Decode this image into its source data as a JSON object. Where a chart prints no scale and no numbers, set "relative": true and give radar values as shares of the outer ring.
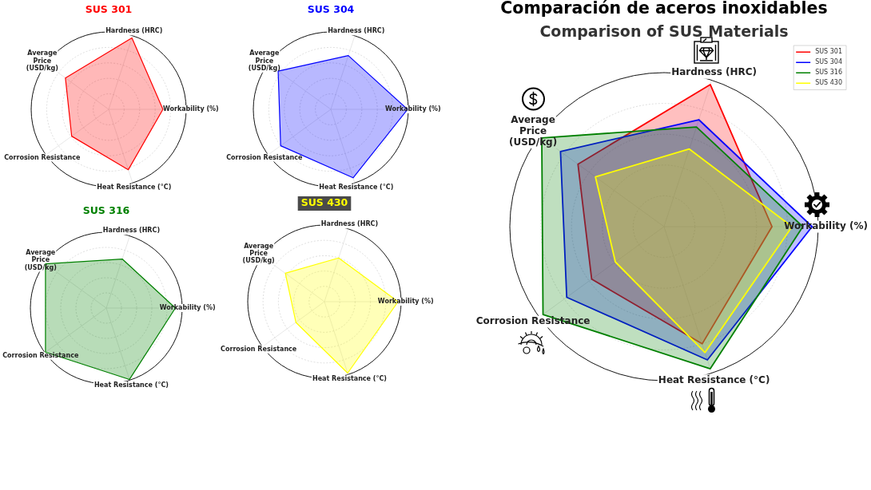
{
  "chart_data": [
    {
      "type": "radar",
      "title": "SUS 301",
      "categories": [
        "Hardness (HRC)",
        "Workability (%)",
        "Heat Resistance (°C)",
        "Corrosion Resistance",
        "Average\nPrice\n(USD/kg)"
      ],
      "relative": true,
      "grid": true,
      "series": [
        {
          "color": "#ff0000",
          "values": [
            0.97,
            0.7,
            0.82,
            0.59,
            0.69
          ]
        }
      ]
    },
    {
      "type": "radar",
      "title": "SUS 304",
      "categories": [
        "Hardness (HRC)",
        "Workability (%)",
        "Heat Resistance (°C)",
        "Corrosion Resistance",
        "Average\nPrice\n(USD/kg)"
      ],
      "relative": true,
      "grid": true,
      "series": [
        {
          "color": "#0000ff",
          "values": [
            0.73,
            0.99,
            0.93,
            0.8,
            0.84
          ]
        }
      ]
    },
    {
      "type": "radar",
      "title": "SUS 316",
      "categories": [
        "Hardness (HRC)",
        "Workability (%)",
        "Heat Resistance (°C)",
        "Corrosion Resistance",
        "Average\nPrice\n(USD/kg)"
      ],
      "relative": true,
      "grid": true,
      "series": [
        {
          "color": "#008000",
          "values": [
            0.68,
            0.91,
            0.99,
            0.99,
            0.99
          ]
        }
      ]
    },
    {
      "type": "radar",
      "title": "SUS 430",
      "categories": [
        "Hardness (HRC)",
        "Workability (%)",
        "Heat Resistance (°C)",
        "Corrosion Resistance",
        "Average\nPrice\n(USD/kg)"
      ],
      "relative": true,
      "grid": true,
      "series": [
        {
          "color": "#ffff00",
          "values": [
            0.6,
            0.96,
            0.98,
            0.46,
            0.63
          ]
        }
      ]
    },
    {
      "type": "radar",
      "title": "Comparación de aceros inoxidables",
      "subtitle": "Comparison of SUS Materials",
      "categories": [
        "Hardness (HRC)",
        "Workability (%)",
        "Heat Resistance (°C)",
        "Corrosion Resistance",
        "Average\nPrice\n(USD/kg)"
      ],
      "relative": true,
      "grid": true,
      "legend": "top right",
      "series": [
        {
          "name": "SUS 301",
          "color": "#ff0000",
          "values": [
            0.97,
            0.7,
            0.8,
            0.58,
            0.69
          ]
        },
        {
          "name": "SUS 304",
          "color": "#0000ff",
          "values": [
            0.73,
            0.96,
            0.91,
            0.78,
            0.83
          ]
        },
        {
          "name": "SUS 316",
          "color": "#008000",
          "values": [
            0.68,
            0.9,
            0.97,
            0.97,
            0.98
          ]
        },
        {
          "name": "SUS 430",
          "color": "#ffff00",
          "values": [
            0.53,
            0.83,
            0.86,
            0.39,
            0.55
          ]
        }
      ]
    }
  ]
}
